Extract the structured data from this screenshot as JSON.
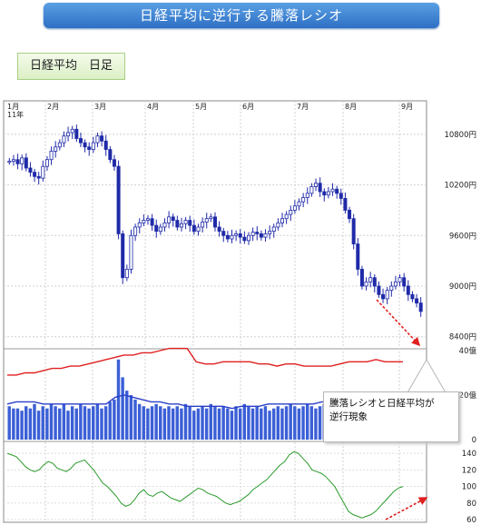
{
  "header": {
    "title": "日経平均に逆行する騰落レシオ"
  },
  "subheader": {
    "label": "日経平均　日足"
  },
  "callout": {
    "line1": "騰落レシオと日経平均が",
    "line2": "逆行現象"
  },
  "colors": {
    "candle": "#1f2aa8",
    "ma_red": "#e02020",
    "volume_bar": "#3b5fd6",
    "ratio_green": "#2a9a2a",
    "arrow": "#e02020"
  },
  "chart_data": [
    {
      "type": "candlestick",
      "title": "",
      "x_ticks": [
        "1月\n11年",
        "2月",
        "3月",
        "4月",
        "5月",
        "6月",
        "7月",
        "8月",
        "9月"
      ],
      "y_ticks": [
        "10800円",
        "10200円",
        "9600円",
        "9000円",
        "8400円"
      ],
      "ylim": [
        8300,
        11100
      ],
      "close": [
        10480,
        10500,
        10450,
        10520,
        10400,
        10350,
        10300,
        10280,
        10420,
        10500,
        10600,
        10650,
        10700,
        10780,
        10820,
        10860,
        10750,
        10700,
        10650,
        10620,
        10700,
        10780,
        10720,
        10620,
        10500,
        10420,
        9620,
        9100,
        9200,
        9600,
        9700,
        9750,
        9780,
        9800,
        9720,
        9650,
        9700,
        9750,
        9820,
        9780,
        9700,
        9740,
        9780,
        9720,
        9650,
        9700,
        9760,
        9800,
        9820,
        9700,
        9650,
        9600,
        9560,
        9600,
        9620,
        9580,
        9540,
        9600,
        9640,
        9620,
        9580,
        9620,
        9650,
        9700,
        9750,
        9800,
        9850,
        9900,
        9950,
        10000,
        10050,
        10100,
        10180,
        10220,
        10120,
        10080,
        10120,
        10150,
        10100,
        10040,
        9900,
        9800,
        9500,
        9200,
        9000,
        9050,
        9100,
        9000,
        8900,
        8850,
        8950,
        9000,
        9050,
        9100,
        9000,
        8900,
        8850,
        8800,
        8700
      ]
    },
    {
      "type": "bar",
      "title": "",
      "y_ticks": [
        "40億",
        "20億",
        "0"
      ],
      "ylim": [
        0,
        40
      ],
      "volume": [
        15,
        14,
        14,
        13,
        15,
        14,
        16,
        13,
        15,
        14,
        16,
        15,
        14,
        16,
        13,
        15,
        14,
        16,
        15,
        14,
        15,
        16,
        14,
        15,
        17,
        18,
        36,
        28,
        22,
        20,
        18,
        16,
        15,
        14,
        15,
        16,
        15,
        14,
        15,
        14,
        15,
        14,
        16,
        15,
        13,
        14,
        15,
        14,
        16,
        15,
        14,
        15,
        14,
        13,
        15,
        14,
        16,
        15,
        14,
        15,
        14,
        15,
        13,
        14,
        15,
        14,
        15,
        16,
        15,
        14,
        15,
        16,
        15,
        14,
        15,
        16,
        14,
        15,
        16,
        15,
        15,
        17,
        18,
        19,
        17,
        16,
        15,
        16,
        17,
        16,
        16,
        17,
        15,
        16,
        17,
        16,
        18,
        17,
        16
      ],
      "series": [
        {
          "values": [
            29,
            29,
            30,
            30,
            31,
            32,
            32,
            33,
            33,
            34,
            35,
            36,
            37,
            38,
            38,
            39,
            39,
            40,
            41,
            41,
            41,
            35,
            34,
            34,
            35,
            35,
            35,
            35,
            34,
            34,
            33,
            34,
            34,
            33,
            33,
            33,
            33,
            34,
            35,
            35,
            35,
            36,
            35,
            35,
            35
          ]
        },
        {
          "values": [
            16,
            17,
            17,
            17,
            16,
            16,
            16,
            16,
            16,
            16,
            16,
            16,
            19,
            20,
            19,
            18,
            17,
            17,
            16,
            16,
            15,
            15,
            15,
            15,
            15,
            14,
            15,
            15,
            15,
            16,
            16,
            16,
            16,
            16,
            16,
            17,
            17,
            18,
            18,
            18,
            18,
            18,
            18,
            18,
            18
          ]
        }
      ]
    },
    {
      "type": "line",
      "title": "",
      "y_ticks": [
        "140",
        "120",
        "100",
        "80",
        "60"
      ],
      "ylim": [
        60,
        150
      ],
      "values": [
        140,
        138,
        136,
        130,
        124,
        120,
        118,
        120,
        126,
        130,
        128,
        122,
        120,
        118,
        122,
        128,
        130,
        132,
        126,
        120,
        112,
        104,
        100,
        94,
        88,
        80,
        76,
        78,
        84,
        92,
        96,
        90,
        88,
        92,
        94,
        90,
        86,
        84,
        82,
        86,
        90,
        94,
        98,
        96,
        92,
        90,
        88,
        84,
        80,
        78,
        80,
        82,
        86,
        90,
        96,
        100,
        104,
        108,
        114,
        120,
        126,
        130,
        138,
        142,
        140,
        134,
        128,
        120,
        118,
        116,
        112,
        106,
        100,
        90,
        80,
        70,
        66,
        64,
        62,
        64,
        66,
        70,
        76,
        82,
        88,
        94,
        98,
        100
      ]
    }
  ]
}
